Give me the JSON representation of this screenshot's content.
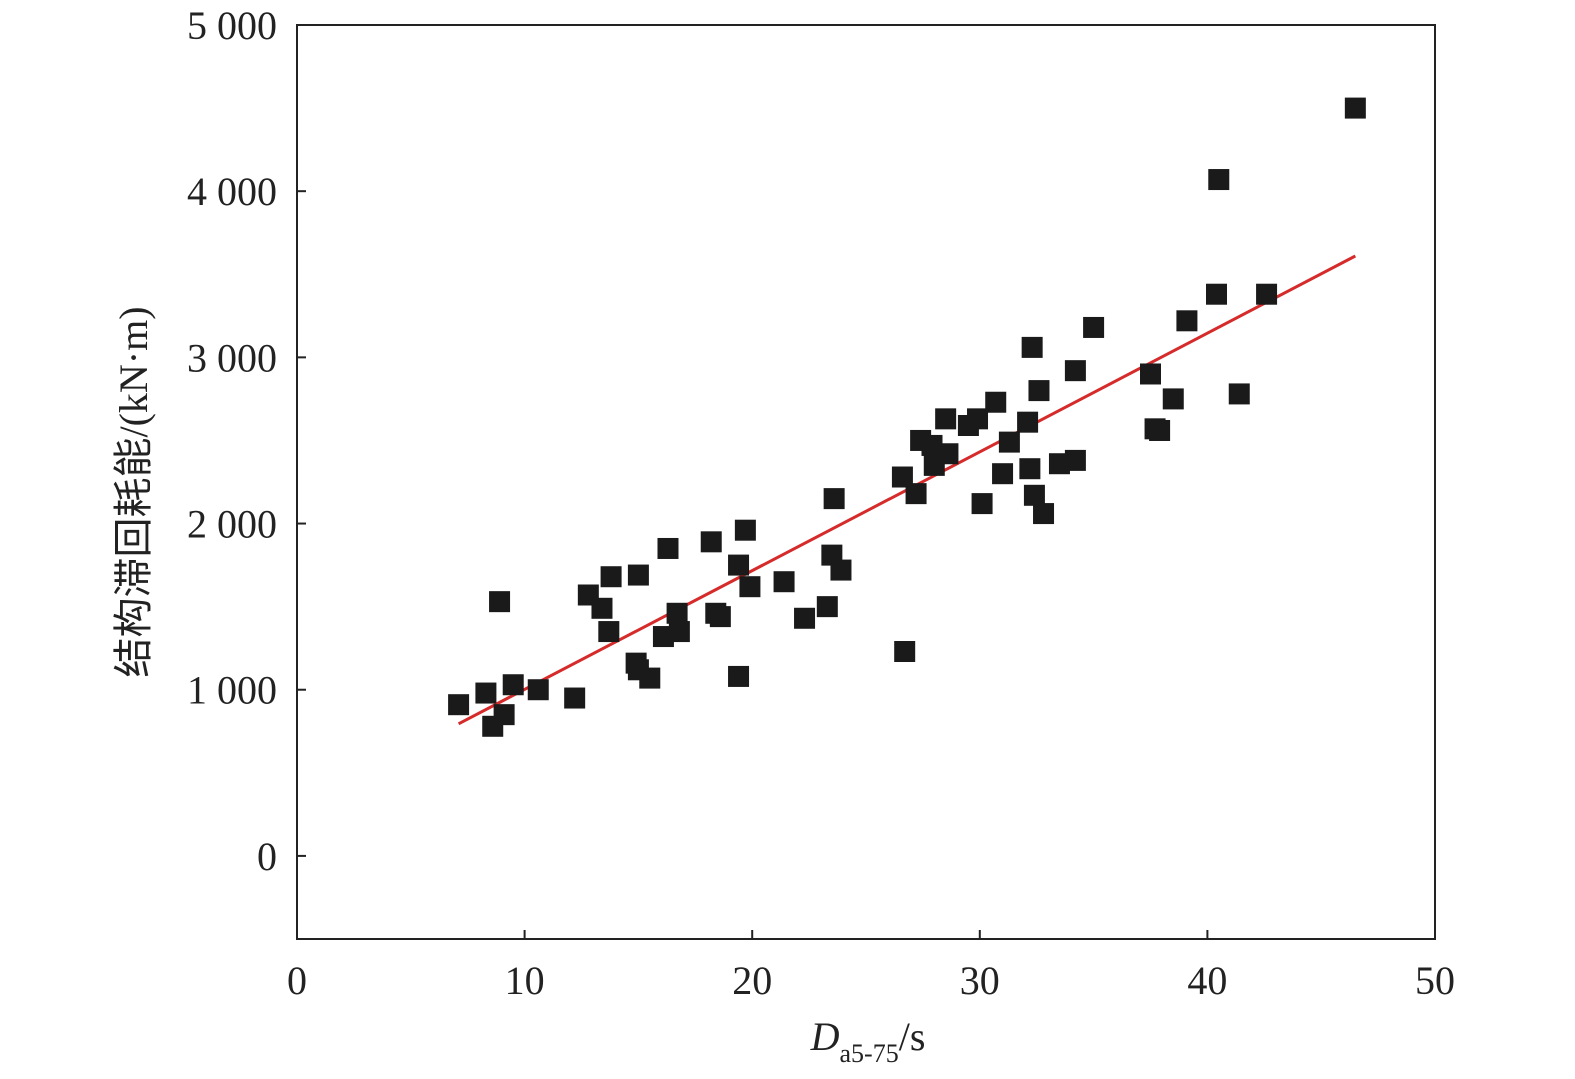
{
  "chart_data": {
    "type": "scatter",
    "title": "",
    "xlabel": {
      "main": "D",
      "sub": "a5-75",
      "unit": "/s"
    },
    "ylabel": "结构滞回耗能/(kN·m)",
    "xlim": [
      0,
      50
    ],
    "ylim": [
      -500,
      5000
    ],
    "x_ticks": [
      0,
      10,
      20,
      30,
      40,
      50
    ],
    "y_ticks": [
      0,
      1000,
      2000,
      3000,
      4000,
      5000
    ],
    "x_tick_labels": [
      "0",
      "10",
      "20",
      "30",
      "40",
      "50"
    ],
    "y_tick_labels": [
      "0",
      "1 000",
      "2 000",
      "3 000",
      "4 000",
      "5 000"
    ],
    "grid": false,
    "legend": "none",
    "marker_color": "#1a1a1a",
    "fit_color": "#d62b2b",
    "points": [
      [
        7.1,
        910
      ],
      [
        8.3,
        980
      ],
      [
        8.6,
        780
      ],
      [
        8.9,
        1530
      ],
      [
        9.1,
        850
      ],
      [
        9.5,
        1030
      ],
      [
        10.6,
        1000
      ],
      [
        12.2,
        950
      ],
      [
        12.8,
        1570
      ],
      [
        13.4,
        1490
      ],
      [
        13.7,
        1350
      ],
      [
        13.8,
        1680
      ],
      [
        14.9,
        1160
      ],
      [
        15.0,
        1120
      ],
      [
        15.0,
        1690
      ],
      [
        15.5,
        1070
      ],
      [
        16.1,
        1320
      ],
      [
        16.3,
        1850
      ],
      [
        16.7,
        1460
      ],
      [
        16.8,
        1350
      ],
      [
        18.2,
        1890
      ],
      [
        18.4,
        1460
      ],
      [
        18.6,
        1440
      ],
      [
        19.4,
        1750
      ],
      [
        19.4,
        1080
      ],
      [
        19.7,
        1960
      ],
      [
        19.9,
        1620
      ],
      [
        21.4,
        1650
      ],
      [
        22.3,
        1430
      ],
      [
        23.3,
        1500
      ],
      [
        23.5,
        1810
      ],
      [
        23.6,
        2150
      ],
      [
        23.9,
        1720
      ],
      [
        26.6,
        2280
      ],
      [
        26.7,
        1230
      ],
      [
        27.2,
        2180
      ],
      [
        27.4,
        2500
      ],
      [
        27.9,
        2470
      ],
      [
        28.0,
        2350
      ],
      [
        28.5,
        2630
      ],
      [
        28.6,
        2420
      ],
      [
        29.5,
        2590
      ],
      [
        29.9,
        2630
      ],
      [
        30.1,
        2120
      ],
      [
        30.7,
        2730
      ],
      [
        31.0,
        2300
      ],
      [
        31.3,
        2490
      ],
      [
        32.1,
        2610
      ],
      [
        32.2,
        2330
      ],
      [
        32.3,
        3060
      ],
      [
        32.4,
        2170
      ],
      [
        32.6,
        2800
      ],
      [
        32.8,
        2060
      ],
      [
        33.5,
        2360
      ],
      [
        34.2,
        2380
      ],
      [
        34.2,
        2920
      ],
      [
        35.0,
        3180
      ],
      [
        37.5,
        2900
      ],
      [
        37.7,
        2570
      ],
      [
        37.9,
        2560
      ],
      [
        38.5,
        2750
      ],
      [
        39.1,
        3220
      ],
      [
        40.4,
        3380
      ],
      [
        40.5,
        4070
      ],
      [
        41.4,
        2780
      ],
      [
        42.6,
        3380
      ],
      [
        46.5,
        4500
      ]
    ],
    "fit_line": {
      "x": [
        7.1,
        46.5
      ],
      "y": [
        795,
        3610
      ]
    }
  }
}
